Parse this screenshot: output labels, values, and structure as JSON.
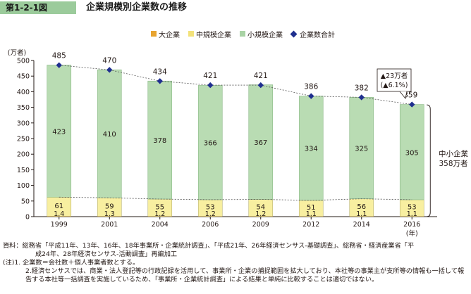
{
  "header": {
    "figure_number": "第1-2-1図",
    "title": "企業規模別企業数の推移"
  },
  "legend": [
    {
      "label": "大企業",
      "color": "#e8a430",
      "shape": "square"
    },
    {
      "label": "中規模企業",
      "color": "#f3e27a",
      "shape": "square"
    },
    {
      "label": "小規模企業",
      "color": "#a9d3a5",
      "shape": "square"
    },
    {
      "label": "企業数合計",
      "color": "#1f2f8f",
      "shape": "diamond"
    }
  ],
  "chart_data": {
    "type": "bar",
    "stacked": true,
    "categories": [
      "1999",
      "2001",
      "2004",
      "2006",
      "2009",
      "2012",
      "2014",
      "2016"
    ],
    "x_unit": "(年)",
    "y_unit": "(万者)",
    "ylim": [
      0,
      500
    ],
    "yticks": [
      0,
      50,
      100,
      150,
      200,
      250,
      300,
      350,
      400,
      450,
      500
    ],
    "series": [
      {
        "name": "大企業",
        "values": [
          1.4,
          1.3,
          1.2,
          1.2,
          1.2,
          1.1,
          1.1,
          1.1
        ],
        "labels": [
          "1.4",
          "1.3",
          "1.2",
          "1.2",
          "1.2",
          "1.1",
          "1.1",
          "1.1"
        ],
        "color": "#e8a430"
      },
      {
        "name": "中規模企業",
        "values": [
          61,
          59,
          55,
          53,
          54,
          51,
          56,
          53
        ],
        "color": "#f8efa0"
      },
      {
        "name": "小規模企業",
        "values": [
          423,
          410,
          378,
          366,
          367,
          334,
          325,
          305
        ],
        "color": "#b9dcb3"
      }
    ],
    "totals": {
      "name": "企業数合計",
      "values": [
        485,
        470,
        434,
        421,
        421,
        386,
        382,
        359
      ],
      "color": "#1f2f8f"
    },
    "annotations": {
      "change_line1": "▲23万者",
      "change_line2": "(▲6.1%)",
      "sme_line1": "中小企業",
      "sme_line2": "358万者"
    },
    "grid": false
  },
  "notes": {
    "source_line1": "資料：総務省「平成11年、13年、16年、18年事業所・企業統計調査」、「平成21年、26年経済センサス‐基礎調査」、総務省・経済産業省「平",
    "source_line2": "成24年、28年経済センサス‐活動調査」再編加工",
    "note1": "(注)1. 企業数＝会社数＋個人事業者数とする。",
    "note2": "2.経済センサスでは、商業・法人登記等の行政記録を活用して、事業所・企業の捕捉範囲を拡大しており、本社等の事業主が支所等の情報も一括して報告する本社等一括調査を実施しているため、「事業所・企業統計調査」による結果と単純に比較することは適切ではない。"
  }
}
